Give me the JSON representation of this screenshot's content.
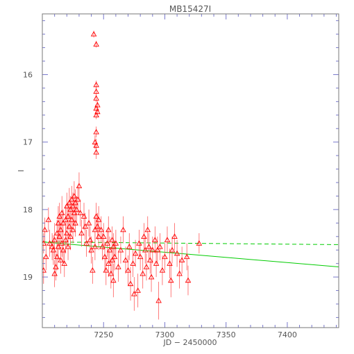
{
  "chart_data": {
    "type": "scatter",
    "title": "MB15427I",
    "xlabel": "JD − 2450000",
    "ylabel": "I",
    "xlim": [
      7200,
      7442
    ],
    "ylim": [
      19.75,
      15.1
    ],
    "y_inverted": true,
    "grid": false,
    "legend": "none",
    "x_major_ticks": [
      7250,
      7300,
      7350,
      7400
    ],
    "x_tick_labels": [
      "7250",
      "7300",
      "7350",
      "7400"
    ],
    "y_major_ticks": [
      16,
      17,
      18,
      19
    ],
    "y_tick_labels": [
      "16",
      "17",
      "18",
      "19"
    ],
    "series": [
      {
        "marker": "triangle",
        "color": "#ff0000",
        "error_bar_color": "#ff5a5a",
        "points": [
          [
            7201,
            18.5,
            0.15
          ],
          [
            7201,
            18.9,
            0.2
          ],
          [
            7202,
            18.3,
            0.18
          ],
          [
            7203,
            18.7,
            0.2
          ],
          [
            7205,
            18.15,
            0.18
          ],
          [
            7206,
            18.5,
            0.2
          ],
          [
            7208,
            18.55,
            0.2
          ],
          [
            7209,
            18.6,
            0.22
          ],
          [
            7210,
            18.45,
            0.25
          ],
          [
            7210,
            18.95,
            0.2
          ],
          [
            7211,
            18.85,
            0.2
          ],
          [
            7212,
            18.35,
            0.2
          ],
          [
            7212,
            18.7,
            0.2
          ],
          [
            7213,
            18.2,
            0.25
          ],
          [
            7213,
            18.55,
            0.2
          ],
          [
            7214,
            18.1,
            0.2
          ],
          [
            7214,
            18.4,
            0.2
          ],
          [
            7215,
            18.3,
            0.2
          ],
          [
            7215,
            18.75,
            0.2
          ],
          [
            7216,
            18.05,
            0.25
          ],
          [
            7216,
            18.5,
            0.2
          ],
          [
            7217,
            18.2,
            0.2
          ],
          [
            7217,
            18.6,
            0.2
          ],
          [
            7218,
            18.8,
            0.2
          ],
          [
            7219,
            18.15,
            0.22
          ],
          [
            7219,
            18.45,
            0.2
          ],
          [
            7220,
            17.95,
            0.2
          ],
          [
            7220,
            18.35,
            0.2
          ],
          [
            7221,
            18.1,
            0.2
          ],
          [
            7221,
            18.55,
            0.2
          ],
          [
            7222,
            17.9,
            0.22
          ],
          [
            7222,
            18.25,
            0.2
          ],
          [
            7223,
            18.0,
            0.2
          ],
          [
            7223,
            18.4,
            0.2
          ],
          [
            7224,
            17.85,
            0.2
          ],
          [
            7224,
            18.15,
            0.2
          ],
          [
            7225,
            17.95,
            0.2
          ],
          [
            7225,
            18.3,
            0.2
          ],
          [
            7226,
            17.8,
            0.22
          ],
          [
            7226,
            18.05,
            0.2
          ],
          [
            7227,
            17.9,
            0.2
          ],
          [
            7227,
            18.2,
            0.2
          ],
          [
            7228,
            18.0,
            0.2
          ],
          [
            7229,
            17.85,
            0.2
          ],
          [
            7230,
            17.65,
            0.2
          ],
          [
            7231,
            18.05,
            0.2
          ],
          [
            7232,
            18.35,
            0.2
          ],
          [
            7234,
            18.1,
            0.2
          ],
          [
            7235,
            18.25,
            0.2
          ],
          [
            7236,
            18.5,
            0.2
          ],
          [
            7238,
            18.2,
            0.2
          ],
          [
            7239,
            18.45,
            0.2
          ],
          [
            7240,
            18.6,
            0.2
          ],
          [
            7241,
            18.9,
            0.2
          ],
          [
            7242,
            15.4,
            0.05
          ],
          [
            7243,
            17.0,
            0.1
          ],
          [
            7243,
            18.3,
            0.2
          ],
          [
            7243,
            18.55,
            0.2
          ],
          [
            7244,
            15.55,
            0.05
          ],
          [
            7244,
            16.15,
            0.06
          ],
          [
            7244,
            16.25,
            0.06
          ],
          [
            7244,
            16.35,
            0.06
          ],
          [
            7244,
            16.5,
            0.06
          ],
          [
            7244,
            16.6,
            0.06
          ],
          [
            7244,
            16.85,
            0.08
          ],
          [
            7244,
            17.05,
            0.1
          ],
          [
            7244,
            17.15,
            0.1
          ],
          [
            7244,
            18.1,
            0.2
          ],
          [
            7245,
            16.45,
            0.06
          ],
          [
            7245,
            16.55,
            0.06
          ],
          [
            7245,
            18.25,
            0.2
          ],
          [
            7246,
            18.15,
            0.2
          ],
          [
            7246,
            18.4,
            0.2
          ],
          [
            7248,
            18.3,
            0.2
          ],
          [
            7249,
            18.55,
            0.2
          ],
          [
            7250,
            18.4,
            0.2
          ],
          [
            7251,
            18.7,
            0.22
          ],
          [
            7252,
            18.9,
            0.22
          ],
          [
            7253,
            18.5,
            0.2
          ],
          [
            7254,
            18.3,
            0.2
          ],
          [
            7254,
            18.8,
            0.2
          ],
          [
            7255,
            18.6,
            0.2
          ],
          [
            7256,
            18.95,
            0.22
          ],
          [
            7257,
            18.45,
            0.2
          ],
          [
            7257,
            18.75,
            0.2
          ],
          [
            7258,
            18.55,
            0.2
          ],
          [
            7258,
            19.05,
            0.25
          ],
          [
            7259,
            18.7,
            0.2
          ],
          [
            7260,
            18.5,
            0.2
          ],
          [
            7262,
            18.85,
            0.22
          ],
          [
            7264,
            18.6,
            0.2
          ],
          [
            7266,
            18.3,
            0.2
          ],
          [
            7268,
            18.75,
            0.2
          ],
          [
            7270,
            18.9,
            0.22
          ],
          [
            7271,
            18.55,
            0.2
          ],
          [
            7272,
            19.1,
            0.25
          ],
          [
            7274,
            18.8,
            0.2
          ],
          [
            7275,
            19.25,
            0.25
          ],
          [
            7276,
            18.65,
            0.2
          ],
          [
            7278,
            19.2,
            0.25
          ],
          [
            7279,
            18.5,
            0.2
          ],
          [
            7280,
            18.7,
            0.2
          ],
          [
            7282,
            18.95,
            0.22
          ],
          [
            7283,
            18.4,
            0.2
          ],
          [
            7284,
            18.6,
            0.2
          ],
          [
            7285,
            18.85,
            0.2
          ],
          [
            7286,
            18.3,
            0.2
          ],
          [
            7287,
            18.55,
            0.2
          ],
          [
            7288,
            18.75,
            0.2
          ],
          [
            7289,
            19.0,
            0.22
          ],
          [
            7290,
            18.6,
            0.2
          ],
          [
            7292,
            18.45,
            0.2
          ],
          [
            7293,
            18.8,
            0.2
          ],
          [
            7294,
            18.6,
            0.2
          ],
          [
            7295,
            19.35,
            0.28
          ],
          [
            7296,
            18.55,
            0.2
          ],
          [
            7298,
            18.9,
            0.22
          ],
          [
            7300,
            18.7,
            0.2
          ],
          [
            7302,
            18.45,
            0.2
          ],
          [
            7304,
            18.8,
            0.22
          ],
          [
            7305,
            19.05,
            0.25
          ],
          [
            7306,
            18.6,
            0.2
          ],
          [
            7308,
            18.4,
            0.2
          ],
          [
            7310,
            18.65,
            0.2
          ],
          [
            7312,
            18.95,
            0.22
          ],
          [
            7314,
            18.75,
            0.2
          ],
          [
            7318,
            18.7,
            0.2
          ],
          [
            7319,
            19.05,
            0.22
          ],
          [
            7328,
            18.5,
            0.15
          ]
        ]
      },
      {
        "line": "solid",
        "color": "#00cc00",
        "x": [
          7200,
          7442
        ],
        "y": [
          18.48,
          18.85
        ]
      },
      {
        "line": "dashed",
        "color": "#00cc00",
        "x": [
          7200,
          7442
        ],
        "y": [
          18.48,
          18.52
        ]
      }
    ]
  }
}
